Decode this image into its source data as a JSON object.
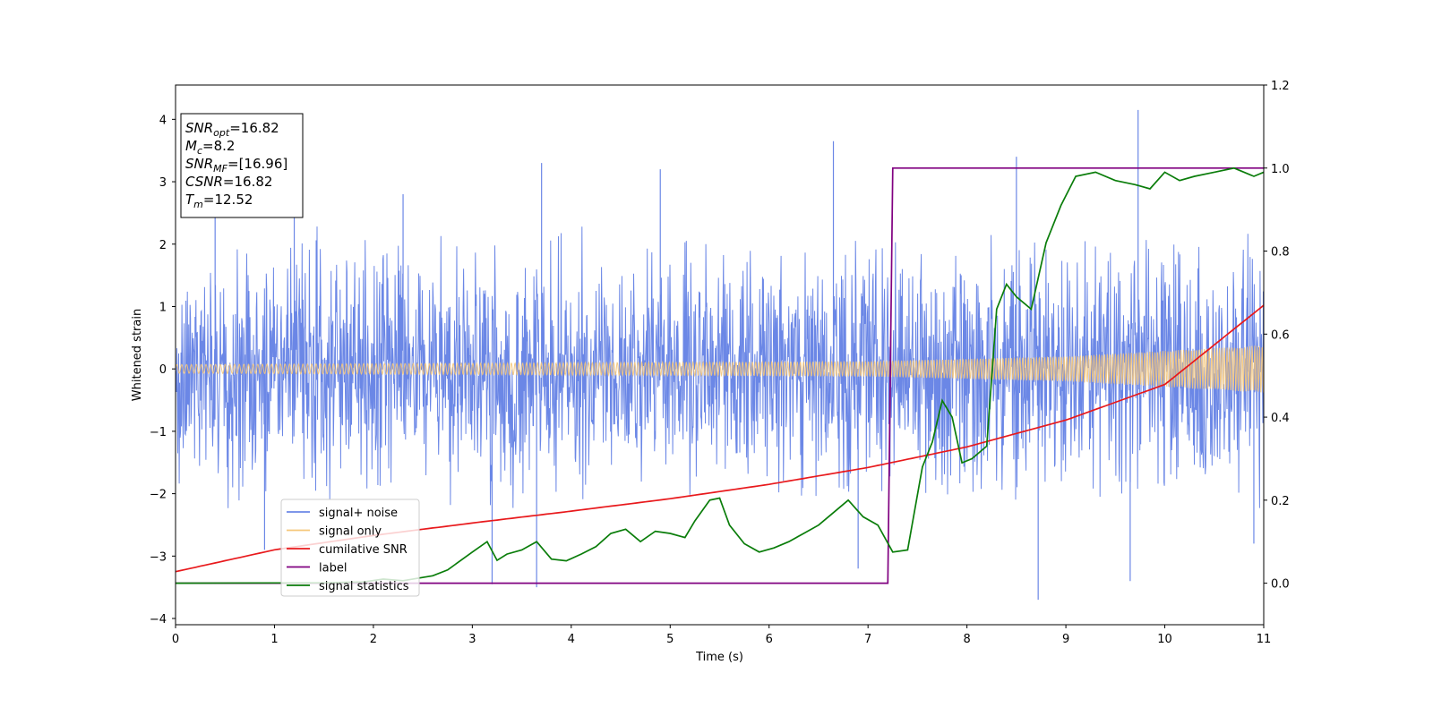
{
  "chart_data": {
    "type": "line",
    "xlabel": "Time (s)",
    "ylabel": "Whitened strain",
    "xlim": [
      0,
      11
    ],
    "ylim": [
      -4.1,
      4.55
    ],
    "y2lim": [
      -0.1,
      1.2
    ],
    "x_ticks": [
      "0",
      "1",
      "2",
      "3",
      "4",
      "5",
      "6",
      "7",
      "8",
      "9",
      "10",
      "11"
    ],
    "y_ticks": [
      "4",
      "3",
      "2",
      "1",
      "0",
      "−1",
      "−2",
      "−3",
      "−4"
    ],
    "y_tick_values": [
      4,
      3,
      2,
      1,
      0,
      -1,
      -2,
      -3,
      -4
    ],
    "y2_ticks": [
      "1.2",
      "1.0",
      "0.8",
      "0.6",
      "0.4",
      "0.2",
      "0.0"
    ],
    "y2_tick_values": [
      1.2,
      1.0,
      0.8,
      0.6,
      0.4,
      0.2,
      0.0
    ],
    "grid": false,
    "legend_position": "lower-left",
    "info_box": [
      {
        "main": "SNR",
        "sub": "opt",
        "value": "=16.82"
      },
      {
        "main": "M",
        "sub": "c",
        "value": "=8.2"
      },
      {
        "main": "SNR",
        "sub": "MF",
        "value": "=[16.96]"
      },
      {
        "main": "CSNR",
        "sub": "",
        "value": "=16.82"
      },
      {
        "main": "T",
        "sub": "m",
        "value": "=12.52"
      }
    ],
    "series": [
      {
        "name": "signal+ noise",
        "color": "#6b87e6",
        "axis": "left",
        "kind": "noise",
        "typical_spread": [
          -2.0,
          2.2
        ],
        "spikes": [
          {
            "x": 0.4,
            "y": 2.9
          },
          {
            "x": 1.2,
            "y": 2.9
          },
          {
            "x": 2.3,
            "y": 2.8
          },
          {
            "x": 3.7,
            "y": 3.3
          },
          {
            "x": 4.9,
            "y": 3.2
          },
          {
            "x": 6.65,
            "y": 3.65
          },
          {
            "x": 8.5,
            "y": 3.4
          },
          {
            "x": 9.73,
            "y": 4.15
          },
          {
            "x": 0.9,
            "y": -2.9
          },
          {
            "x": 3.2,
            "y": -3.45
          },
          {
            "x": 3.65,
            "y": -3.5
          },
          {
            "x": 6.9,
            "y": -3.2
          },
          {
            "x": 8.72,
            "y": -3.7
          },
          {
            "x": 9.65,
            "y": -3.4
          },
          {
            "x": 10.9,
            "y": -2.8
          }
        ]
      },
      {
        "name": "signal only",
        "color": "#f5c77a",
        "axis": "left",
        "kind": "chirp",
        "amplitude": [
          [
            0,
            0.07
          ],
          [
            7,
            0.12
          ],
          [
            9,
            0.2
          ],
          [
            11,
            0.38
          ]
        ]
      },
      {
        "name": "cumilative SNR",
        "color": "#e8191c",
        "axis": "left",
        "kind": "line",
        "x": [
          0,
          1,
          2,
          3,
          4,
          5,
          6,
          7,
          8,
          9,
          10,
          11
        ],
        "y": [
          -3.25,
          -2.9,
          -2.67,
          -2.47,
          -2.28,
          -2.08,
          -1.85,
          -1.58,
          -1.25,
          -0.82,
          -0.25,
          1.02
        ]
      },
      {
        "name": "label",
        "color": "#800080",
        "axis": "right",
        "kind": "line",
        "x": [
          0,
          7.2,
          7.25,
          11
        ],
        "y": [
          0.0,
          0.0,
          1.0,
          1.0
        ]
      },
      {
        "name": "signal statistics",
        "color": "#0a7d0a",
        "axis": "right",
        "kind": "line",
        "x": [
          0,
          1.5,
          1.9,
          2.1,
          2.3,
          2.6,
          2.75,
          3.0,
          3.15,
          3.25,
          3.35,
          3.5,
          3.65,
          3.8,
          3.95,
          4.1,
          4.25,
          4.4,
          4.55,
          4.7,
          4.85,
          5.0,
          5.15,
          5.25,
          5.4,
          5.5,
          5.6,
          5.75,
          5.9,
          6.05,
          6.2,
          6.35,
          6.5,
          6.65,
          6.8,
          6.95,
          7.1,
          7.25,
          7.4,
          7.55,
          7.65,
          7.75,
          7.85,
          7.95,
          8.05,
          8.2,
          8.3,
          8.4,
          8.5,
          8.65,
          8.8,
          8.95,
          9.1,
          9.3,
          9.5,
          9.7,
          9.85,
          10.0,
          10.15,
          10.3,
          10.5,
          10.7,
          10.9,
          11.0
        ],
        "y": [
          0.0,
          0.001,
          0.003,
          0.01,
          0.006,
          0.018,
          0.032,
          0.075,
          0.1,
          0.055,
          0.07,
          0.08,
          0.1,
          0.058,
          0.054,
          0.07,
          0.088,
          0.12,
          0.13,
          0.1,
          0.125,
          0.12,
          0.11,
          0.15,
          0.2,
          0.205,
          0.14,
          0.095,
          0.075,
          0.085,
          0.1,
          0.12,
          0.14,
          0.17,
          0.2,
          0.16,
          0.14,
          0.075,
          0.08,
          0.28,
          0.34,
          0.44,
          0.4,
          0.29,
          0.3,
          0.33,
          0.66,
          0.72,
          0.69,
          0.66,
          0.82,
          0.91,
          0.98,
          0.99,
          0.97,
          0.96,
          0.95,
          0.99,
          0.97,
          0.98,
          0.99,
          1.0,
          0.98,
          0.99
        ]
      }
    ]
  }
}
